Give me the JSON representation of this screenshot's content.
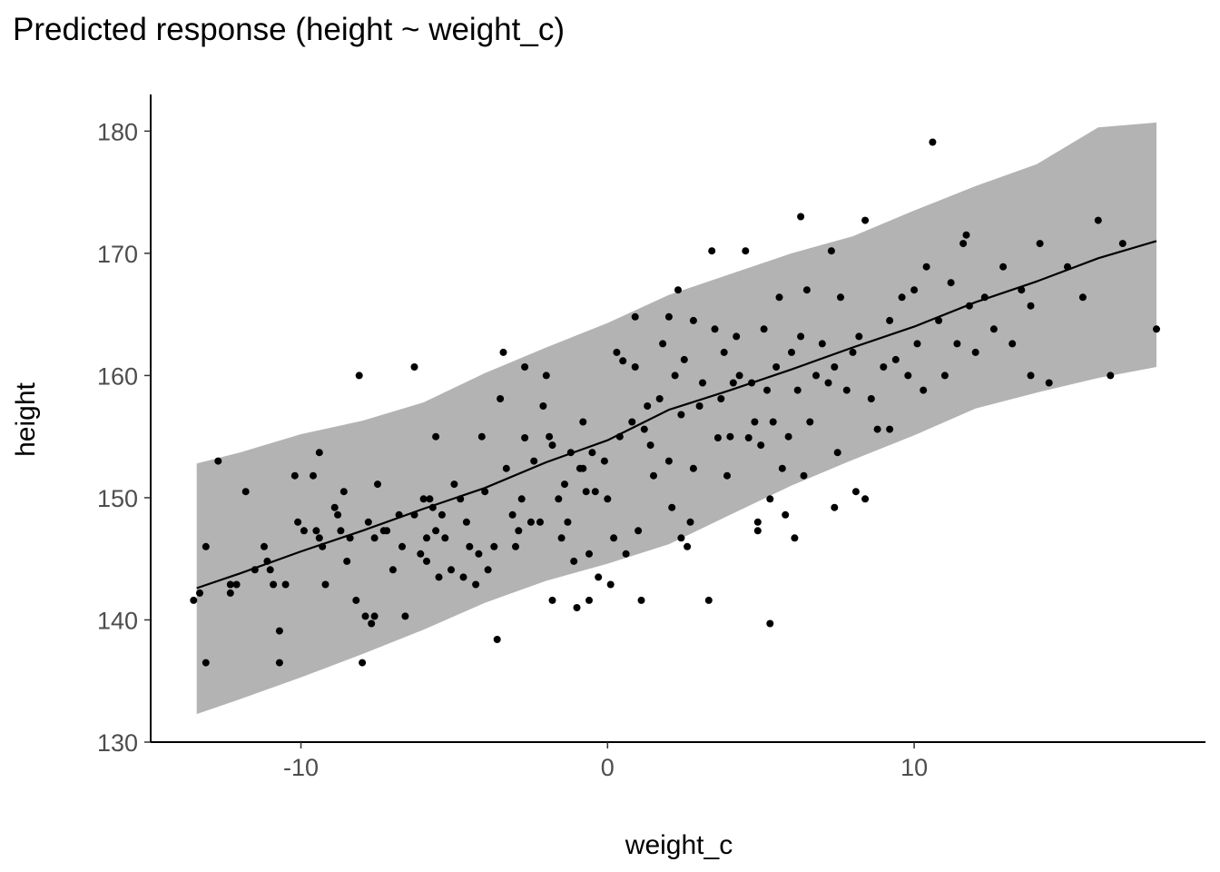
{
  "chart_data": {
    "type": "scatter",
    "title": "Predicted response (height ~ weight_c)",
    "xlabel": "weight_c",
    "ylabel": "height",
    "xlim": [
      -14.9,
      19.5
    ],
    "ylim": [
      130,
      183
    ],
    "x_ticks": [
      -10,
      0,
      10
    ],
    "y_ticks": [
      130,
      140,
      150,
      160,
      170,
      180
    ],
    "x_tick_labels": [
      "-10",
      "0",
      "10"
    ],
    "y_tick_labels": [
      "130",
      "140",
      "150",
      "160",
      "170",
      "180"
    ],
    "grid": false,
    "legend": "none",
    "series": [
      {
        "kind": "band",
        "x": [
          -13.4,
          -12.0,
          -10.0,
          -8.0,
          -6.0,
          -4.0,
          -2.0,
          0.0,
          2.0,
          4.0,
          6.0,
          8.0,
          10.0,
          12.0,
          14.0,
          16.0,
          17.9
        ],
        "lower": [
          132.3,
          133.5,
          135.3,
          137.2,
          139.2,
          141.4,
          143.2,
          144.6,
          146.2,
          148.6,
          151.0,
          153.1,
          155.1,
          157.3,
          158.6,
          159.8,
          160.7
        ],
        "upper": [
          152.8,
          153.7,
          155.2,
          156.3,
          157.8,
          160.2,
          162.3,
          164.3,
          166.6,
          168.3,
          170.0,
          171.4,
          173.5,
          175.5,
          177.3,
          180.3,
          180.7
        ],
        "color": "#b3b3b3"
      },
      {
        "kind": "line",
        "x": [
          -13.4,
          -12.0,
          -10.0,
          -8.0,
          -6.0,
          -4.0,
          -2.0,
          0.0,
          2.0,
          4.0,
          6.0,
          8.0,
          10.0,
          12.0,
          14.0,
          16.0,
          17.9
        ],
        "y": [
          142.6,
          143.8,
          145.6,
          147.3,
          149.1,
          150.8,
          152.9,
          154.7,
          157.2,
          158.8,
          160.5,
          162.3,
          164.0,
          166.0,
          167.7,
          169.6,
          171.0
        ],
        "color": "#000000"
      },
      {
        "kind": "points",
        "color": "#000000",
        "points": [
          [
            -13.5,
            141.6
          ],
          [
            -13.3,
            142.2
          ],
          [
            -13.1,
            136.5
          ],
          [
            -13.1,
            146.0
          ],
          [
            -12.7,
            153.0
          ],
          [
            -12.3,
            142.9
          ],
          [
            -12.3,
            142.2
          ],
          [
            -12.1,
            142.9
          ],
          [
            -11.8,
            150.5
          ],
          [
            -11.5,
            144.1
          ],
          [
            -11.2,
            146.0
          ],
          [
            -11.1,
            144.8
          ],
          [
            -11.0,
            144.1
          ],
          [
            -10.9,
            142.9
          ],
          [
            -10.7,
            139.1
          ],
          [
            -10.5,
            142.9
          ],
          [
            -10.2,
            151.8
          ],
          [
            -10.1,
            148.0
          ],
          [
            -9.9,
            147.3
          ],
          [
            -9.6,
            151.8
          ],
          [
            -9.5,
            147.3
          ],
          [
            -9.4,
            153.7
          ],
          [
            -9.4,
            146.7
          ],
          [
            -9.3,
            146.0
          ],
          [
            -9.2,
            142.9
          ],
          [
            -8.9,
            149.2
          ],
          [
            -8.8,
            148.6
          ],
          [
            -8.7,
            147.3
          ],
          [
            -8.6,
            150.5
          ],
          [
            -8.5,
            144.8
          ],
          [
            -8.4,
            146.7
          ],
          [
            -8.2,
            141.6
          ],
          [
            -8.1,
            160.0
          ],
          [
            -8.0,
            136.5
          ],
          [
            -7.8,
            148.0
          ],
          [
            -7.7,
            139.7
          ],
          [
            -7.6,
            146.7
          ],
          [
            -7.6,
            140.3
          ],
          [
            -7.5,
            151.1
          ],
          [
            -7.3,
            147.3
          ],
          [
            -7.2,
            147.3
          ],
          [
            -7.0,
            144.1
          ],
          [
            -6.8,
            148.6
          ],
          [
            -6.7,
            146.0
          ],
          [
            -6.6,
            140.3
          ],
          [
            -6.3,
            148.6
          ],
          [
            -6.1,
            145.4
          ],
          [
            -6.0,
            149.9
          ],
          [
            -5.9,
            146.7
          ],
          [
            -5.9,
            144.8
          ],
          [
            -5.8,
            149.9
          ],
          [
            -5.7,
            149.2
          ],
          [
            -5.6,
            155.0
          ],
          [
            -5.6,
            147.3
          ],
          [
            -5.5,
            143.5
          ],
          [
            -5.4,
            148.6
          ],
          [
            -5.3,
            146.7
          ],
          [
            -5.1,
            144.1
          ],
          [
            -5.0,
            151.1
          ],
          [
            -4.8,
            149.9
          ],
          [
            -4.7,
            143.5
          ],
          [
            -4.6,
            148.0
          ],
          [
            -4.5,
            146.0
          ],
          [
            -4.3,
            142.9
          ],
          [
            -4.2,
            145.4
          ],
          [
            -4.0,
            150.5
          ],
          [
            -3.9,
            144.1
          ],
          [
            -3.7,
            146.0
          ],
          [
            -3.6,
            138.4
          ],
          [
            -3.5,
            158.1
          ],
          [
            -3.3,
            152.4
          ],
          [
            -3.1,
            148.6
          ],
          [
            -3.0,
            146.0
          ],
          [
            -2.9,
            147.3
          ],
          [
            -2.8,
            149.9
          ],
          [
            -2.7,
            154.9
          ],
          [
            -2.7,
            160.7
          ],
          [
            -2.5,
            148.0
          ],
          [
            -2.4,
            153.0
          ],
          [
            -2.2,
            148.0
          ],
          [
            -2.1,
            157.5
          ],
          [
            -1.9,
            155.0
          ],
          [
            -1.8,
            154.3
          ],
          [
            -1.6,
            149.9
          ],
          [
            -1.5,
            146.7
          ],
          [
            -1.4,
            151.1
          ],
          [
            -1.3,
            148.0
          ],
          [
            -1.2,
            153.7
          ],
          [
            -1.1,
            144.8
          ],
          [
            -1.0,
            141.0
          ],
          [
            -0.9,
            152.4
          ],
          [
            -0.8,
            156.2
          ],
          [
            -0.8,
            152.4
          ],
          [
            -0.7,
            150.5
          ],
          [
            -0.6,
            145.4
          ],
          [
            -0.5,
            153.7
          ],
          [
            -0.4,
            150.5
          ],
          [
            -0.3,
            143.5
          ],
          [
            -0.1,
            153.0
          ],
          [
            0.0,
            149.9
          ],
          [
            0.1,
            142.9
          ],
          [
            0.2,
            146.7
          ],
          [
            0.3,
            161.9
          ],
          [
            0.4,
            155.0
          ],
          [
            0.5,
            161.2
          ],
          [
            0.6,
            145.4
          ],
          [
            0.8,
            156.2
          ],
          [
            0.9,
            160.7
          ],
          [
            1.0,
            147.3
          ],
          [
            1.1,
            141.6
          ],
          [
            1.2,
            155.6
          ],
          [
            1.3,
            157.5
          ],
          [
            1.4,
            154.3
          ],
          [
            1.5,
            151.8
          ],
          [
            1.7,
            158.1
          ],
          [
            1.8,
            162.6
          ],
          [
            2.0,
            153.0
          ],
          [
            2.1,
            149.2
          ],
          [
            2.2,
            160.0
          ],
          [
            2.4,
            146.7
          ],
          [
            2.4,
            156.8
          ],
          [
            2.5,
            161.3
          ],
          [
            2.6,
            146.0
          ],
          [
            2.7,
            148.0
          ],
          [
            2.8,
            164.5
          ],
          [
            2.8,
            152.4
          ],
          [
            3.0,
            157.5
          ],
          [
            3.1,
            159.4
          ],
          [
            3.3,
            141.6
          ],
          [
            3.5,
            163.8
          ],
          [
            3.6,
            154.9
          ],
          [
            3.7,
            158.1
          ],
          [
            3.8,
            161.9
          ],
          [
            3.9,
            151.8
          ],
          [
            4.0,
            155.0
          ],
          [
            4.1,
            159.4
          ],
          [
            4.2,
            163.2
          ],
          [
            4.3,
            160.0
          ],
          [
            4.5,
            170.2
          ],
          [
            4.6,
            154.9
          ],
          [
            4.7,
            159.4
          ],
          [
            4.8,
            156.2
          ],
          [
            4.9,
            147.3
          ],
          [
            5.0,
            154.3
          ],
          [
            5.1,
            163.8
          ],
          [
            5.2,
            158.8
          ],
          [
            5.3,
            149.9
          ],
          [
            5.4,
            156.2
          ],
          [
            5.5,
            160.7
          ],
          [
            5.6,
            166.4
          ],
          [
            5.7,
            152.4
          ],
          [
            5.8,
            148.6
          ],
          [
            5.9,
            155.0
          ],
          [
            6.0,
            161.9
          ],
          [
            6.1,
            146.7
          ],
          [
            6.2,
            158.8
          ],
          [
            6.3,
            163.2
          ],
          [
            6.4,
            151.8
          ],
          [
            6.5,
            167.0
          ],
          [
            6.6,
            156.2
          ],
          [
            6.8,
            160.0
          ],
          [
            7.0,
            162.6
          ],
          [
            7.2,
            159.4
          ],
          [
            7.3,
            170.2
          ],
          [
            7.4,
            160.7
          ],
          [
            7.5,
            153.7
          ],
          [
            7.6,
            166.4
          ],
          [
            7.8,
            158.8
          ],
          [
            8.0,
            161.9
          ],
          [
            8.1,
            150.5
          ],
          [
            8.2,
            163.2
          ],
          [
            8.4,
            172.7
          ],
          [
            8.6,
            158.1
          ],
          [
            8.8,
            155.6
          ],
          [
            9.0,
            160.7
          ],
          [
            9.2,
            164.5
          ],
          [
            9.4,
            161.3
          ],
          [
            9.6,
            166.4
          ],
          [
            9.8,
            160.0
          ],
          [
            10.0,
            167.0
          ],
          [
            10.1,
            162.6
          ],
          [
            10.3,
            158.8
          ],
          [
            10.4,
            168.9
          ],
          [
            10.6,
            179.1
          ],
          [
            10.8,
            164.5
          ],
          [
            11.0,
            160.0
          ],
          [
            11.2,
            167.6
          ],
          [
            11.4,
            162.6
          ],
          [
            11.6,
            170.8
          ],
          [
            11.8,
            165.7
          ],
          [
            12.0,
            161.9
          ],
          [
            12.3,
            166.4
          ],
          [
            12.6,
            163.8
          ],
          [
            12.9,
            168.9
          ],
          [
            13.2,
            162.6
          ],
          [
            13.5,
            167.0
          ],
          [
            13.8,
            165.7
          ],
          [
            14.1,
            170.8
          ],
          [
            14.4,
            159.4
          ],
          [
            15.0,
            168.9
          ],
          [
            15.5,
            166.4
          ],
          [
            16.0,
            172.7
          ],
          [
            16.4,
            160.0
          ],
          [
            16.8,
            170.8
          ],
          [
            17.9,
            163.8
          ],
          [
            -6.3,
            160.7
          ],
          [
            -4.1,
            155.0
          ],
          [
            -2.0,
            160.0
          ],
          [
            0.9,
            164.8
          ],
          [
            2.3,
            167.0
          ],
          [
            3.4,
            170.2
          ],
          [
            6.3,
            173.0
          ],
          [
            5.3,
            139.7
          ],
          [
            -10.7,
            136.5
          ],
          [
            -7.9,
            140.3
          ],
          [
            -3.4,
            161.9
          ],
          [
            -1.8,
            141.6
          ],
          [
            7.4,
            149.2
          ],
          [
            8.4,
            149.9
          ],
          [
            9.2,
            155.6
          ],
          [
            11.7,
            171.5
          ],
          [
            13.8,
            160.0
          ],
          [
            4.9,
            148.0
          ],
          [
            -0.6,
            141.6
          ],
          [
            2.0,
            164.8
          ]
        ]
      }
    ]
  }
}
